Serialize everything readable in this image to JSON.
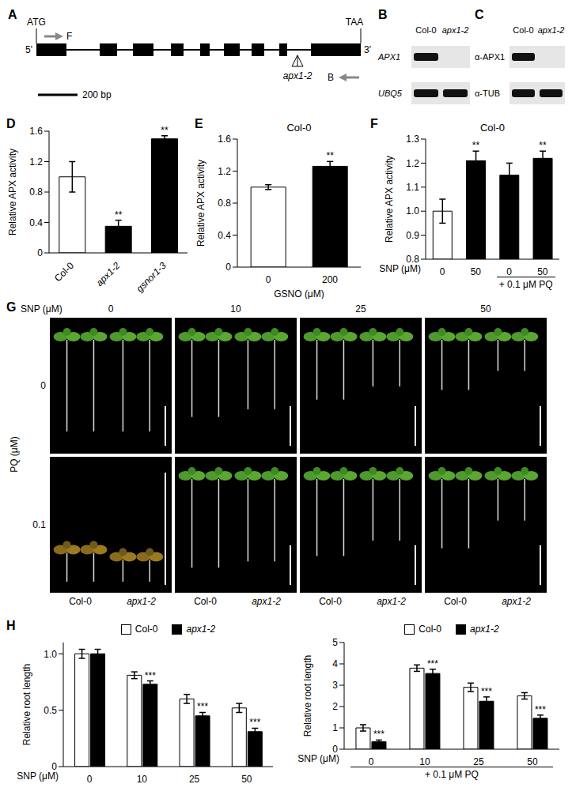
{
  "panels": {
    "A": {
      "letter": "A",
      "start_codon": "ATG",
      "stop_codon": "TAA",
      "five_prime": "5'",
      "three_prime": "3'",
      "forward_primer": "F",
      "reverse_primer": "B",
      "insertion": "apx1-2",
      "scale_bar": "200 bp"
    },
    "B": {
      "letter": "B",
      "lanes": [
        "Col-0",
        "apx1-2"
      ],
      "rows": [
        {
          "label": "APX1",
          "bands": [
            true,
            false
          ]
        },
        {
          "label": "UBQ5",
          "bands": [
            true,
            true
          ]
        }
      ]
    },
    "C": {
      "letter": "C",
      "lanes": [
        "Col-0",
        "apx1-2"
      ],
      "rows": [
        {
          "label": "α-APX1",
          "bands": [
            true,
            false
          ]
        },
        {
          "label": "α-TUB",
          "bands": [
            true,
            true
          ]
        }
      ]
    },
    "G": {
      "letter": "G",
      "column_title": "SNP (μM)",
      "columns": [
        "0",
        "10",
        "25",
        "50"
      ],
      "row_title": "PQ (μM)",
      "rows": [
        "0",
        "0.1"
      ],
      "genotypes": [
        "Col-0",
        "apx1-2"
      ]
    }
  },
  "chart_data": [
    {
      "letter": "D",
      "type": "bar",
      "categories": [
        "Col-0",
        "apx1-2",
        "gsnor1-3"
      ],
      "values": [
        1.0,
        0.35,
        1.5
      ],
      "errors": [
        0.2,
        0.08,
        0.04
      ],
      "significance": [
        null,
        "**",
        "**"
      ],
      "colors": [
        "#ffffff",
        "#000000",
        "#000000"
      ],
      "ylabel": "Relative APX activity",
      "ylim": [
        0,
        1.6
      ],
      "yticks": [
        0,
        0.4,
        0.8,
        1.2,
        1.6
      ]
    },
    {
      "letter": "E",
      "type": "bar",
      "title": "Col-0",
      "categories": [
        "0",
        "200"
      ],
      "xlabel": "GSNO (μM)",
      "values": [
        1.0,
        1.26
      ],
      "errors": [
        0.03,
        0.06
      ],
      "significance": [
        null,
        "**"
      ],
      "colors": [
        "#ffffff",
        "#000000"
      ],
      "ylabel": "Relative APX activity",
      "ylim": [
        0,
        1.6
      ],
      "yticks": [
        0,
        0.4,
        0.8,
        1.2,
        1.6
      ]
    },
    {
      "letter": "F",
      "type": "bar",
      "title": "Col-0",
      "categories": [
        "0",
        "50",
        "0",
        "50"
      ],
      "xlabel": "SNP (μM)",
      "group": {
        "label": "+ 0.1 μM PQ",
        "from": 2,
        "to": 3
      },
      "values": [
        1.0,
        1.21,
        1.15,
        1.22
      ],
      "errors": [
        0.05,
        0.04,
        0.05,
        0.03
      ],
      "significance": [
        null,
        "**",
        null,
        "**"
      ],
      "colors": [
        "#ffffff",
        "#000000",
        "#000000",
        "#000000"
      ],
      "ylabel": "Relative APX activity",
      "ylim": [
        0.8,
        1.3
      ],
      "yticks": [
        0.8,
        0.9,
        {
          "value": 1,
          "label": "1.0"
        },
        1.1,
        1.2,
        1.3
      ]
    },
    {
      "letter": "H",
      "type": "bar",
      "categories": [
        "0",
        "10",
        "25",
        "50"
      ],
      "xlabel": "SNP (μM)",
      "ylabel": "Relative root length",
      "legend": "top",
      "series": [
        {
          "name": "Col-0",
          "color": "#ffffff",
          "values": [
            1.0,
            0.81,
            0.6,
            0.52
          ],
          "errors": [
            0.04,
            0.03,
            0.04,
            0.04
          ],
          "significance": [
            null,
            null,
            null,
            null
          ]
        },
        {
          "name": "apx1-2",
          "color": "#000000",
          "values": [
            1.0,
            0.73,
            0.45,
            0.31
          ],
          "errors": [
            0.04,
            0.03,
            0.03,
            0.03
          ],
          "significance": [
            null,
            "***",
            "***",
            "***"
          ]
        }
      ],
      "ylim": [
        0,
        1.1
      ],
      "yticks": [
        0,
        0.5,
        {
          "value": 1,
          "label": "1.0"
        }
      ]
    },
    {
      "type": "bar",
      "categories": [
        "0",
        "10",
        "25",
        "50"
      ],
      "xlabel": "SNP (μM)",
      "group": {
        "label": "+ 0.1 μM PQ",
        "from": 0,
        "to": 3
      },
      "ylabel": "Relative root length",
      "legend": "top",
      "series": [
        {
          "name": "Col-0",
          "color": "#ffffff",
          "values": [
            1.0,
            3.8,
            2.9,
            2.5
          ],
          "errors": [
            0.15,
            0.15,
            0.2,
            0.15
          ],
          "significance": [
            null,
            null,
            null,
            null
          ]
        },
        {
          "name": "apx1-2",
          "color": "#000000",
          "values": [
            0.35,
            3.55,
            2.25,
            1.45
          ],
          "errors": [
            0.08,
            0.2,
            0.2,
            0.15
          ],
          "significance": [
            "***",
            "***",
            "***",
            "***"
          ]
        }
      ],
      "ylim": [
        0,
        5
      ],
      "yticks": [
        0,
        1,
        2,
        3,
        4,
        5
      ]
    }
  ]
}
